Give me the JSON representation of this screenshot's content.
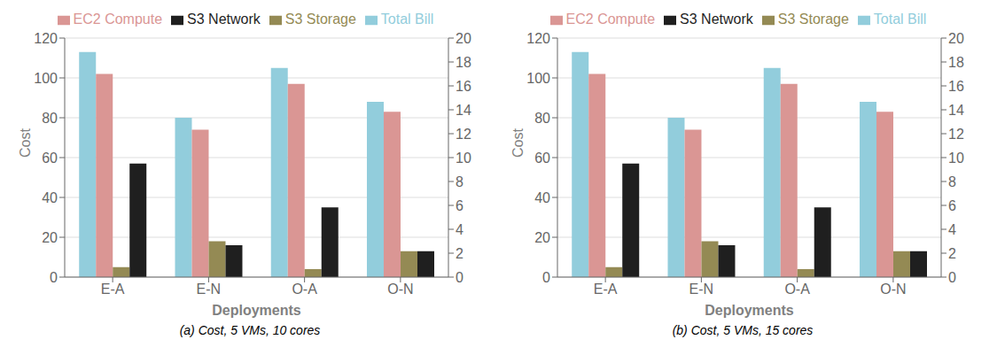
{
  "chart_data": [
    {
      "type": "bar",
      "categories": [
        "E-A",
        "E-N",
        "O-A",
        "O-N"
      ],
      "series": [
        {
          "name": "Total Bill",
          "color": "#92CDDC",
          "values": [
            113,
            80,
            105,
            88
          ]
        },
        {
          "name": "EC2 Compute",
          "color": "#DA9694",
          "values": [
            102,
            74,
            97,
            83
          ]
        },
        {
          "name": "S3 Storage",
          "color": "#948A54",
          "values": [
            5,
            18,
            4,
            13
          ]
        },
        {
          "name": "S3 Network",
          "color": "#1F1F1F",
          "values": [
            57,
            16,
            35,
            13
          ]
        }
      ],
      "ylim": [
        0,
        120
      ],
      "yticks": [
        0,
        20,
        40,
        60,
        80,
        100,
        120
      ],
      "y2lim": [
        0,
        20
      ],
      "y2ticks": [
        0,
        2,
        4,
        6,
        8,
        10,
        12,
        14,
        16,
        18,
        20
      ],
      "xlabel": "Deployments",
      "ylabel": "Cost",
      "subtitle": "(a) Cost, 5 VMs, 10 cores",
      "grid": true,
      "legend": "top"
    },
    {
      "type": "bar",
      "categories": [
        "E-A",
        "E-N",
        "O-A",
        "O-N"
      ],
      "series": [
        {
          "name": "Total Bill",
          "color": "#92CDDC",
          "values": [
            113,
            80,
            105,
            88
          ]
        },
        {
          "name": "EC2 Compute",
          "color": "#DA9694",
          "values": [
            102,
            74,
            97,
            83
          ]
        },
        {
          "name": "S3 Storage",
          "color": "#948A54",
          "values": [
            5,
            18,
            4,
            13
          ]
        },
        {
          "name": "S3 Network",
          "color": "#1F1F1F",
          "values": [
            57,
            16,
            35,
            13
          ]
        }
      ],
      "ylim": [
        0,
        120
      ],
      "yticks": [
        0,
        20,
        40,
        60,
        80,
        100,
        120
      ],
      "y2lim": [
        0,
        20
      ],
      "y2ticks": [
        0,
        2,
        4,
        6,
        8,
        10,
        12,
        14,
        16,
        18,
        20
      ],
      "xlabel": "Deployments",
      "ylabel": "Cost",
      "subtitle": "(b) Cost, 5 VMs, 15 cores",
      "grid": true,
      "legend": "top"
    }
  ]
}
